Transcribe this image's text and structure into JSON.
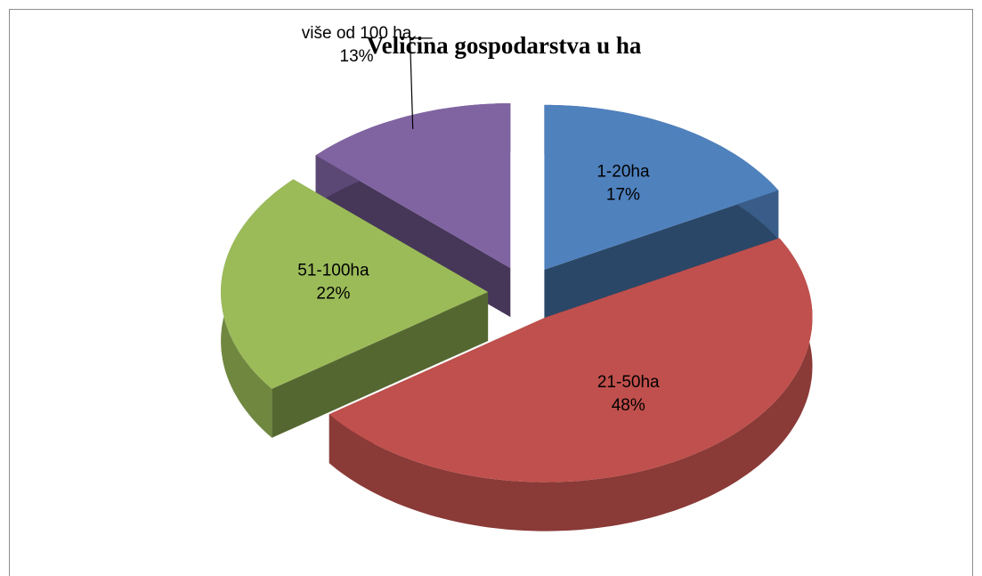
{
  "chart_data": {
    "type": "pie3d",
    "title": "Veličina gospodarstva u ha",
    "categories": [
      "1-20ha",
      "21-50ha",
      "51-100ha",
      "više od 100 ha"
    ],
    "values": [
      17,
      48,
      22,
      13
    ],
    "value_labels": [
      "17%",
      "48%",
      "22%",
      "13%"
    ],
    "colors": [
      "#4f81bd",
      "#c0504d",
      "#9bbb59",
      "#8064a2"
    ]
  }
}
